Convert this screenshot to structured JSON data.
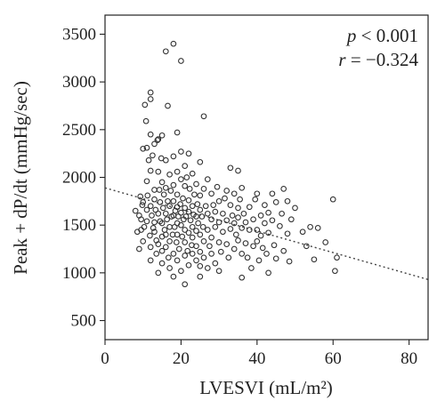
{
  "chart_data": {
    "type": "scatter",
    "xlabel": "LVESVI (mL/m²)",
    "ylabel": "Peak + dP/dt (mmHg/sec)",
    "xlim": [
      0,
      85
    ],
    "ylim": [
      300,
      3700
    ],
    "xticks": [
      "0",
      "20",
      "40",
      "60",
      "80"
    ],
    "yticks": [
      "500",
      "1000",
      "1500",
      "2000",
      "2500",
      "3000",
      "3500"
    ],
    "xtick_values": [
      0,
      20,
      40,
      60,
      80
    ],
    "ytick_values": [
      500,
      1000,
      1500,
      2000,
      2500,
      3000,
      3500
    ],
    "grid": false,
    "annotations": {
      "p_prefix": "p",
      "p_rest": " < 0.001",
      "r_prefix": "r",
      "r_rest": " = −0.324"
    },
    "trendline": {
      "style": "dotted",
      "x": [
        0,
        85
      ],
      "y": [
        1890,
        930
      ]
    },
    "points": [
      [
        8.0,
        1650
      ],
      [
        8.5,
        1430
      ],
      [
        9.0,
        1600
      ],
      [
        9.0,
        1250
      ],
      [
        9.3,
        1800
      ],
      [
        9.5,
        1450
      ],
      [
        9.5,
        1560
      ],
      [
        9.8,
        1710
      ],
      [
        10.0,
        2300
      ],
      [
        10.0,
        1740
      ],
      [
        10.0,
        1330
      ],
      [
        10.3,
        1480
      ],
      [
        10.5,
        2760
      ],
      [
        10.8,
        2590
      ],
      [
        11.0,
        2310
      ],
      [
        11.0,
        1960
      ],
      [
        11.0,
        1540
      ],
      [
        11.0,
        1660
      ],
      [
        11.2,
        1810
      ],
      [
        11.5,
        2180
      ],
      [
        11.8,
        1390
      ],
      [
        12.0,
        2890
      ],
      [
        12.0,
        2820
      ],
      [
        12.0,
        2450
      ],
      [
        12.0,
        2070
      ],
      [
        12.0,
        1700
      ],
      [
        12.0,
        1270
      ],
      [
        12.0,
        1130
      ],
      [
        12.3,
        1600
      ],
      [
        12.5,
        2230
      ],
      [
        12.7,
        1470
      ],
      [
        13.0,
        2350
      ],
      [
        13.0,
        1870
      ],
      [
        13.0,
        1770
      ],
      [
        13.0,
        1530
      ],
      [
        13.0,
        1430
      ],
      [
        13.3,
        1660
      ],
      [
        13.5,
        1200
      ],
      [
        13.5,
        1340
      ],
      [
        13.8,
        2390
      ],
      [
        14.0,
        2400
      ],
      [
        14.0,
        2060
      ],
      [
        14.0,
        1620
      ],
      [
        14.0,
        1300
      ],
      [
        14.0,
        1000
      ],
      [
        14.3,
        1870
      ],
      [
        14.5,
        1740
      ],
      [
        14.5,
        1540
      ],
      [
        14.8,
        2200
      ],
      [
        15.0,
        2440
      ],
      [
        15.0,
        1950
      ],
      [
        15.0,
        1520
      ],
      [
        15.0,
        1380
      ],
      [
        15.0,
        1230
      ],
      [
        15.0,
        1100
      ],
      [
        15.3,
        1680
      ],
      [
        15.5,
        1820
      ],
      [
        15.7,
        1450
      ],
      [
        16.0,
        3320
      ],
      [
        16.0,
        2180
      ],
      [
        16.0,
        1890
      ],
      [
        16.0,
        1620
      ],
      [
        16.0,
        1400
      ],
      [
        16.0,
        1270
      ],
      [
        16.3,
        1560
      ],
      [
        16.5,
        2750
      ],
      [
        16.5,
        1750
      ],
      [
        16.7,
        1160
      ],
      [
        17.0,
        2030
      ],
      [
        17.0,
        1700
      ],
      [
        17.0,
        1480
      ],
      [
        17.0,
        1330
      ],
      [
        17.0,
        1050
      ],
      [
        17.3,
        1860
      ],
      [
        17.5,
        1590
      ],
      [
        17.8,
        1400
      ],
      [
        18.0,
        3400
      ],
      [
        18.0,
        2220
      ],
      [
        18.0,
        1920
      ],
      [
        18.0,
        1750
      ],
      [
        18.0,
        1600
      ],
      [
        18.0,
        1200
      ],
      [
        18.0,
        960
      ],
      [
        18.3,
        1480
      ],
      [
        18.5,
        1650
      ],
      [
        18.8,
        1320
      ],
      [
        19.0,
        2470
      ],
      [
        19.0,
        2060
      ],
      [
        19.0,
        1820
      ],
      [
        19.0,
        1690
      ],
      [
        19.0,
        1520
      ],
      [
        19.0,
        1400
      ],
      [
        19.0,
        1130
      ],
      [
        19.3,
        1590
      ],
      [
        19.5,
        1250
      ],
      [
        19.8,
        1720
      ],
      [
        20.0,
        3220
      ],
      [
        20.0,
        2270
      ],
      [
        20.0,
        1980
      ],
      [
        20.0,
        1630
      ],
      [
        20.0,
        1500
      ],
      [
        20.0,
        1020
      ],
      [
        20.3,
        1380
      ],
      [
        20.5,
        1780
      ],
      [
        20.7,
        1560
      ],
      [
        21.0,
        2120
      ],
      [
        21.0,
        1910
      ],
      [
        21.0,
        1680
      ],
      [
        21.0,
        1450
      ],
      [
        21.0,
        1320
      ],
      [
        21.0,
        1180
      ],
      [
        21.0,
        880
      ],
      [
        21.3,
        1590
      ],
      [
        21.5,
        2000
      ],
      [
        21.7,
        1230
      ],
      [
        22.0,
        2250
      ],
      [
        22.0,
        1760
      ],
      [
        22.0,
        1640
      ],
      [
        22.0,
        1420
      ],
      [
        22.0,
        1080
      ],
      [
        22.3,
        1880
      ],
      [
        22.5,
        1550
      ],
      [
        22.8,
        1290
      ],
      [
        23.0,
        2040
      ],
      [
        23.0,
        1700
      ],
      [
        23.0,
        1480
      ],
      [
        23.0,
        1370
      ],
      [
        23.0,
        1200
      ],
      [
        23.3,
        1610
      ],
      [
        23.5,
        1820
      ],
      [
        24.0,
        1930
      ],
      [
        24.0,
        1590
      ],
      [
        24.0,
        1440
      ],
      [
        24.0,
        1280
      ],
      [
        24.0,
        1130
      ],
      [
        24.3,
        1720
      ],
      [
        24.5,
        1520
      ],
      [
        25.0,
        2160
      ],
      [
        25.0,
        1810
      ],
      [
        25.0,
        1660
      ],
      [
        25.0,
        1400
      ],
      [
        25.0,
        1220
      ],
      [
        25.0,
        1070
      ],
      [
        25.5,
        1590
      ],
      [
        25.8,
        1480
      ],
      [
        26.0,
        2640
      ],
      [
        26.0,
        1880
      ],
      [
        26.0,
        1330
      ],
      [
        26.0,
        1160
      ],
      [
        26.5,
        1700
      ],
      [
        27.0,
        1980
      ],
      [
        27.0,
        1620
      ],
      [
        27.0,
        1450
      ],
      [
        27.0,
        1050
      ],
      [
        27.5,
        1280
      ],
      [
        28.0,
        1830
      ],
      [
        28.0,
        1560
      ],
      [
        28.0,
        1370
      ],
      [
        28.0,
        1200
      ],
      [
        28.5,
        1710
      ],
      [
        29.0,
        1640
      ],
      [
        29.0,
        1480
      ],
      [
        29.0,
        1100
      ],
      [
        29.5,
        1900
      ],
      [
        30.0,
        1750
      ],
      [
        30.0,
        1530
      ],
      [
        30.0,
        1320
      ],
      [
        30.5,
        1220
      ],
      [
        31.0,
        1620
      ],
      [
        31.0,
        1430
      ],
      [
        31.5,
        1780
      ],
      [
        32.0,
        1860
      ],
      [
        32.0,
        1550
      ],
      [
        32.0,
        1300
      ],
      [
        32.5,
        1160
      ],
      [
        33.0,
        2100
      ],
      [
        33.0,
        1710
      ],
      [
        33.0,
        1460
      ],
      [
        33.5,
        1600
      ],
      [
        34.0,
        1830
      ],
      [
        34.0,
        1520
      ],
      [
        34.0,
        1250
      ],
      [
        34.5,
        1400
      ],
      [
        35.0,
        2070
      ],
      [
        35.0,
        1680
      ],
      [
        35.0,
        1580
      ],
      [
        35.0,
        1340
      ],
      [
        35.5,
        1770
      ],
      [
        36.0,
        1890
      ],
      [
        36.0,
        1470
      ],
      [
        36.0,
        1200
      ],
      [
        36.5,
        1620
      ],
      [
        37.0,
        1530
      ],
      [
        37.0,
        1310
      ],
      [
        37.5,
        1160
      ],
      [
        38.0,
        1690
      ],
      [
        38.0,
        1450
      ],
      [
        38.5,
        1050
      ],
      [
        39.0,
        1560
      ],
      [
        39.0,
        1280
      ],
      [
        39.5,
        1770
      ],
      [
        40.0,
        1830
      ],
      [
        40.0,
        1450
      ],
      [
        40.0,
        1330
      ],
      [
        40.5,
        1130
      ],
      [
        41.0,
        1600
      ],
      [
        41.0,
        1390
      ],
      [
        41.5,
        1260
      ],
      [
        42.0,
        1710
      ],
      [
        42.0,
        1520
      ],
      [
        42.5,
        1200
      ],
      [
        43.0,
        1630
      ],
      [
        43.0,
        1420
      ],
      [
        44.0,
        1830
      ],
      [
        44.0,
        1550
      ],
      [
        44.5,
        1290
      ],
      [
        45.0,
        1740
      ],
      [
        45.0,
        1150
      ],
      [
        46.0,
        1490
      ],
      [
        46.5,
        1620
      ],
      [
        47.0,
        1880
      ],
      [
        47.0,
        1230
      ],
      [
        48.0,
        1750
      ],
      [
        48.0,
        1410
      ],
      [
        49.0,
        1560
      ],
      [
        50.0,
        1680
      ],
      [
        52.0,
        1430
      ],
      [
        53.0,
        1280
      ],
      [
        54.0,
        1480
      ],
      [
        55.0,
        1140
      ],
      [
        56.0,
        1470
      ],
      [
        58.0,
        1320
      ],
      [
        60.0,
        1770
      ],
      [
        60.5,
        1020
      ],
      [
        61.0,
        1160
      ],
      [
        36.0,
        950
      ],
      [
        30.0,
        1020
      ],
      [
        25.0,
        960
      ],
      [
        43.0,
        1000
      ],
      [
        48.5,
        1120
      ]
    ]
  }
}
